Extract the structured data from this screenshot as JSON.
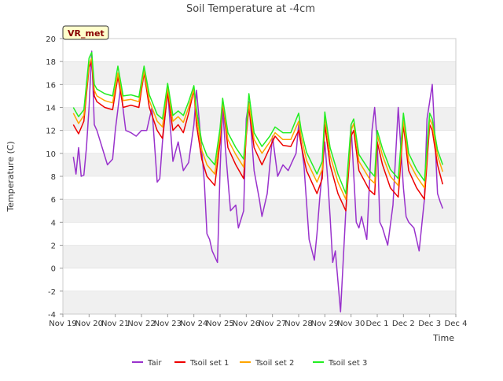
{
  "chart_data": {
    "type": "line",
    "title": "Soil Temperature at -4cm",
    "xlabel": "Time",
    "ylabel": "Temperature (C)",
    "site_label": "VR_met",
    "x_unit": "days",
    "x_range": [
      0,
      15
    ],
    "x_ticks": [
      0,
      1,
      2,
      3,
      4,
      5,
      6,
      7,
      8,
      9,
      10,
      11,
      12,
      13,
      14,
      15
    ],
    "x_tick_labels": [
      "Nov 19",
      "Nov 20",
      "Nov 21",
      "Nov 22",
      "Nov 23",
      "Nov 24",
      "Nov 25",
      "Nov 26",
      "Nov 27",
      "Nov 28",
      "Nov 29",
      "Nov 30",
      "Dec 1",
      "Dec 2",
      "Dec 3",
      "Dec 4"
    ],
    "ylim": [
      -4,
      20
    ],
    "y_ticks": [
      -4,
      -2,
      0,
      2,
      4,
      6,
      8,
      10,
      12,
      14,
      16,
      18,
      20
    ],
    "grid": "horizontal bands",
    "legend_position": "bottom",
    "colors": {
      "Tair": "#9932cc",
      "Tsoil set 1": "#ee0000",
      "Tsoil set 2": "#ffa500",
      "Tsoil set 3": "#22ee22",
      "band": "#f0f0f0",
      "gridline": "#dddddd",
      "label_box": "#ffffcc",
      "label_text": "#880000"
    },
    "series": [
      {
        "name": "Tair",
        "x": [
          0.4,
          0.5,
          0.6,
          0.7,
          0.8,
          0.9,
          1.0,
          1.1,
          1.2,
          1.3,
          1.5,
          1.7,
          1.9,
          2.0,
          2.2,
          2.4,
          2.6,
          2.8,
          3.0,
          3.2,
          3.4,
          3.6,
          3.7,
          3.8,
          4.0,
          4.2,
          4.4,
          4.6,
          4.8,
          5.0,
          5.1,
          5.2,
          5.4,
          5.5,
          5.6,
          5.7,
          5.8,
          5.9,
          6.0,
          6.1,
          6.2,
          6.4,
          6.6,
          6.7,
          6.9,
          7.0,
          7.1,
          7.3,
          7.5,
          7.6,
          7.8,
          8.0,
          8.2,
          8.4,
          8.6,
          8.8,
          8.9,
          9.0,
          9.2,
          9.4,
          9.6,
          9.7,
          9.8,
          10.0,
          10.1,
          10.2,
          10.3,
          10.4,
          10.6,
          10.8,
          11.0,
          11.2,
          11.3,
          11.4,
          11.6,
          11.8,
          11.9,
          12.0,
          12.1,
          12.2,
          12.4,
          12.6,
          12.8,
          13.0,
          13.1,
          13.2,
          13.4,
          13.6,
          13.8,
          13.9,
          14.0,
          14.1,
          14.2,
          14.3,
          14.4,
          14.5
        ],
        "values": [
          9.7,
          8.2,
          10.5,
          8.0,
          8.1,
          10.5,
          14.0,
          18.9,
          12.5,
          12.0,
          10.5,
          9.0,
          9.5,
          12.0,
          15.7,
          12.0,
          11.8,
          11.5,
          12.0,
          12.0,
          14.0,
          7.5,
          7.8,
          11.0,
          15.5,
          9.3,
          11.0,
          8.5,
          9.2,
          12.5,
          15.5,
          13.0,
          7.5,
          3.0,
          2.5,
          1.5,
          1.0,
          0.5,
          8.5,
          14.0,
          10.5,
          5.0,
          5.5,
          3.5,
          5.0,
          13.0,
          14.5,
          8.5,
          6.0,
          4.5,
          6.5,
          11.5,
          8.0,
          9.0,
          8.5,
          9.5,
          10.0,
          12.5,
          9.0,
          2.5,
          0.7,
          3.0,
          6.0,
          11.0,
          8.0,
          4.5,
          0.5,
          1.5,
          -3.8,
          5.0,
          12.5,
          4.0,
          3.5,
          4.5,
          2.5,
          12.0,
          14.0,
          11.0,
          4.0,
          3.5,
          2.0,
          5.5,
          14.0,
          7.0,
          4.5,
          4.0,
          3.5,
          1.5,
          6.0,
          13.0,
          14.5,
          16.0,
          11.5,
          6.5,
          5.8,
          5.2
        ]
      },
      {
        "name": "Tsoil set 1",
        "x": [
          0.4,
          0.6,
          0.8,
          1.0,
          1.1,
          1.2,
          1.3,
          1.6,
          1.9,
          2.1,
          2.3,
          2.6,
          2.9,
          3.1,
          3.3,
          3.6,
          3.8,
          4.0,
          4.2,
          4.4,
          4.6,
          4.8,
          5.0,
          5.1,
          5.3,
          5.5,
          5.8,
          6.0,
          6.1,
          6.3,
          6.6,
          6.9,
          7.0,
          7.1,
          7.3,
          7.6,
          7.9,
          8.1,
          8.4,
          8.7,
          9.0,
          9.1,
          9.3,
          9.7,
          9.9,
          10.0,
          10.2,
          10.5,
          10.8,
          11.0,
          11.1,
          11.3,
          11.7,
          11.9,
          12.0,
          12.2,
          12.5,
          12.8,
          13.0,
          13.2,
          13.5,
          13.8,
          14.0,
          14.1,
          14.3,
          14.5
        ],
        "values": [
          12.5,
          11.7,
          12.8,
          17.5,
          18.0,
          15.0,
          14.5,
          14.0,
          13.8,
          16.7,
          14.0,
          14.2,
          14.0,
          17.0,
          14.0,
          12.0,
          11.3,
          15.3,
          12.0,
          12.5,
          11.8,
          13.5,
          15.5,
          12.5,
          9.5,
          8.0,
          7.2,
          11.0,
          14.5,
          10.5,
          9.0,
          7.8,
          11.5,
          14.0,
          10.5,
          9.0,
          10.5,
          11.5,
          10.7,
          10.6,
          12.0,
          10.7,
          8.5,
          6.5,
          7.8,
          12.5,
          9.0,
          6.5,
          5.0,
          11.5,
          12.0,
          8.5,
          6.8,
          6.4,
          11.0,
          9.0,
          7.0,
          6.2,
          12.5,
          8.5,
          7.0,
          6.0,
          12.5,
          12.0,
          9.0,
          7.3
        ]
      },
      {
        "name": "Tsoil set 2",
        "x": [
          0.4,
          0.6,
          0.8,
          1.0,
          1.1,
          1.2,
          1.3,
          1.6,
          1.9,
          2.1,
          2.3,
          2.6,
          2.9,
          3.1,
          3.3,
          3.6,
          3.8,
          4.0,
          4.2,
          4.4,
          4.6,
          4.8,
          5.0,
          5.1,
          5.3,
          5.5,
          5.8,
          6.0,
          6.1,
          6.3,
          6.6,
          6.9,
          7.0,
          7.1,
          7.3,
          7.6,
          7.9,
          8.1,
          8.4,
          8.7,
          9.0,
          9.1,
          9.3,
          9.7,
          9.9,
          10.0,
          10.2,
          10.5,
          10.8,
          11.0,
          11.1,
          11.3,
          11.7,
          11.9,
          12.0,
          12.2,
          12.5,
          12.8,
          13.0,
          13.2,
          13.5,
          13.8,
          14.0,
          14.1,
          14.3,
          14.5
        ],
        "values": [
          13.5,
          12.6,
          13.3,
          17.8,
          18.3,
          15.5,
          15.0,
          14.6,
          14.4,
          17.0,
          14.6,
          14.7,
          14.5,
          17.2,
          14.6,
          12.8,
          12.3,
          15.7,
          12.8,
          13.2,
          12.7,
          14.0,
          15.6,
          13.2,
          10.3,
          9.0,
          8.2,
          11.6,
          14.5,
          11.2,
          9.9,
          8.8,
          11.8,
          14.4,
          11.2,
          10.0,
          11.0,
          11.8,
          11.2,
          11.2,
          12.8,
          11.4,
          9.4,
          7.5,
          8.6,
          13.2,
          9.8,
          7.5,
          6.0,
          12.0,
          12.6,
          9.3,
          7.8,
          7.4,
          11.6,
          9.8,
          8.0,
          7.2,
          12.9,
          9.3,
          8.0,
          7.0,
          13.0,
          12.5,
          9.8,
          8.4
        ]
      },
      {
        "name": "Tsoil set 3",
        "x": [
          0.4,
          0.6,
          0.8,
          1.0,
          1.1,
          1.2,
          1.3,
          1.6,
          1.9,
          2.1,
          2.3,
          2.6,
          2.9,
          3.1,
          3.3,
          3.6,
          3.8,
          4.0,
          4.2,
          4.4,
          4.6,
          4.8,
          5.0,
          5.1,
          5.3,
          5.5,
          5.8,
          6.0,
          6.1,
          6.3,
          6.6,
          6.9,
          7.0,
          7.1,
          7.3,
          7.6,
          7.9,
          8.1,
          8.4,
          8.7,
          9.0,
          9.1,
          9.3,
          9.7,
          9.9,
          10.0,
          10.2,
          10.5,
          10.8,
          11.0,
          11.1,
          11.3,
          11.7,
          11.9,
          12.0,
          12.2,
          12.5,
          12.8,
          13.0,
          13.2,
          13.5,
          13.8,
          14.0,
          14.1,
          14.3,
          14.5
        ],
        "values": [
          14.0,
          13.2,
          13.8,
          18.3,
          18.8,
          16.0,
          15.6,
          15.2,
          15.0,
          17.6,
          15.0,
          15.1,
          14.9,
          17.6,
          15.1,
          13.4,
          13.0,
          16.1,
          13.3,
          13.7,
          13.3,
          14.5,
          15.9,
          13.8,
          11.0,
          9.8,
          9.0,
          12.2,
          14.8,
          11.8,
          10.5,
          9.5,
          12.2,
          15.2,
          11.8,
          10.6,
          11.5,
          12.3,
          11.8,
          11.8,
          13.5,
          12.0,
          10.1,
          8.2,
          9.3,
          13.6,
          10.5,
          8.2,
          6.5,
          12.5,
          13.0,
          9.9,
          8.5,
          8.0,
          12.0,
          10.4,
          8.6,
          7.8,
          13.5,
          10.0,
          8.6,
          7.6,
          13.5,
          13.0,
          10.3,
          9.0
        ]
      }
    ]
  }
}
